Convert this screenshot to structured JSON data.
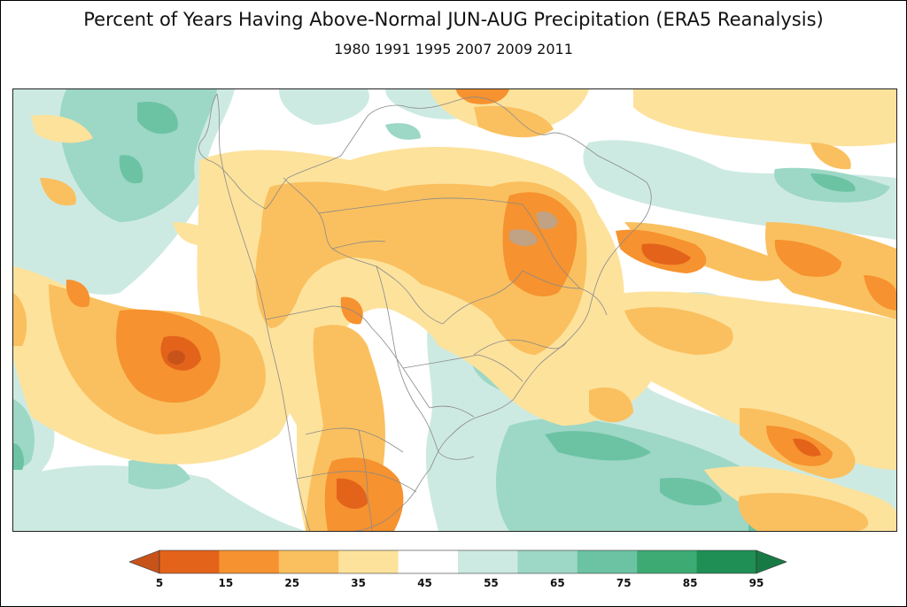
{
  "title": "Percent of Years Having Above-Normal JUN-AUG Precipitation (ERA5 Reanalysis)",
  "subtitle": "1980 1991 1995 2007 2009 2011",
  "colorbar": {
    "ticks": [
      "5",
      "15",
      "25",
      "35",
      "45",
      "55",
      "65",
      "75",
      "85",
      "95"
    ],
    "colors": [
      "#e3631b",
      "#f6922f",
      "#fac05f",
      "#fde29c",
      "#ffffff",
      "#cdeae2",
      "#9dd7c6",
      "#6cc3a4",
      "#3daa74",
      "#1f8f55"
    ],
    "under_color": "#c8531a",
    "over_color": "#177a45"
  }
}
